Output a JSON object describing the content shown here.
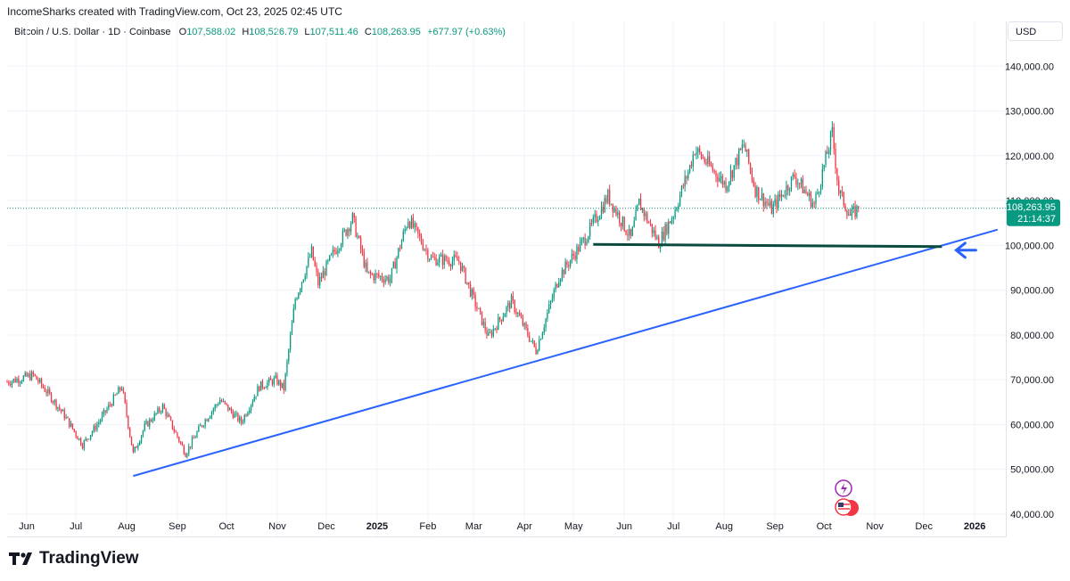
{
  "header": {
    "caption": "IncomeSharks created with TradingView.com, Oct 23, 2025 02:45 UTC",
    "symbol": "Bitcoin / U.S. Dollar · 1D · Coinbase",
    "ohlc": {
      "o_label": "O",
      "o": "107,588.02",
      "h_label": "H",
      "h": "108,526.79",
      "l_label": "L",
      "l": "107,511.46",
      "c_label": "C",
      "c": "108,263.95",
      "change": "+677.97 (+0.63%)"
    },
    "currency": "USD"
  },
  "brand": {
    "name": "TradingView"
  },
  "price_tag": {
    "price": "108,263.95",
    "countdown": "21:14:37"
  },
  "colors": {
    "up": "#089981",
    "down": "#f23645",
    "trendline": "#2962ff",
    "support": "#0b4a3f",
    "arrow": "#2962ff",
    "price_tag": "#089981"
  },
  "icons": [
    "flash-event-icon",
    "us-flag-icon"
  ],
  "chart_data": {
    "type": "candlestick",
    "y_axis": {
      "min": 35000,
      "max": 150000,
      "ticks": [
        40000,
        50000,
        60000,
        70000,
        80000,
        90000,
        100000,
        110000,
        120000,
        130000,
        140000
      ],
      "tick_labels": [
        "40,000.00",
        "50,000.00",
        "60,000.00",
        "70,000.00",
        "80,000.00",
        "90,000.00",
        "100,000.00",
        "110,000.00",
        "120,000.00",
        "130,000.00",
        "140,000.00"
      ]
    },
    "x_axis": {
      "start": "2024-05-20",
      "end": "2026-01-20",
      "ticks": [
        {
          "date": "2024-06-01",
          "label": "Jun"
        },
        {
          "date": "2024-07-01",
          "label": "Jul"
        },
        {
          "date": "2024-08-01",
          "label": "Aug"
        },
        {
          "date": "2024-09-01",
          "label": "Sep"
        },
        {
          "date": "2024-10-01",
          "label": "Oct"
        },
        {
          "date": "2024-11-01",
          "label": "Nov"
        },
        {
          "date": "2024-12-01",
          "label": "Dec"
        },
        {
          "date": "2025-01-01",
          "label": "2025",
          "bold": true
        },
        {
          "date": "2025-02-01",
          "label": "Feb"
        },
        {
          "date": "2025-03-01",
          "label": "Mar"
        },
        {
          "date": "2025-04-01",
          "label": "Apr"
        },
        {
          "date": "2025-05-01",
          "label": "May"
        },
        {
          "date": "2025-06-01",
          "label": "Jun"
        },
        {
          "date": "2025-07-01",
          "label": "Jul"
        },
        {
          "date": "2025-08-01",
          "label": "Aug"
        },
        {
          "date": "2025-09-01",
          "label": "Sep"
        },
        {
          "date": "2025-10-01",
          "label": "Oct"
        },
        {
          "date": "2025-11-01",
          "label": "Nov"
        },
        {
          "date": "2025-12-01",
          "label": "Dec"
        },
        {
          "date": "2026-01-01",
          "label": "2026",
          "bold": true
        }
      ]
    },
    "close_path": [
      [
        "2024-05-20",
        69500
      ],
      [
        "2024-06-05",
        71000
      ],
      [
        "2024-06-15",
        66500
      ],
      [
        "2024-06-24",
        62000
      ],
      [
        "2024-07-05",
        55500
      ],
      [
        "2024-07-14",
        60000
      ],
      [
        "2024-07-29",
        68500
      ],
      [
        "2024-08-05",
        53500
      ],
      [
        "2024-08-12",
        59500
      ],
      [
        "2024-08-23",
        64000
      ],
      [
        "2024-09-06",
        53500
      ],
      [
        "2024-09-15",
        59500
      ],
      [
        "2024-09-27",
        65500
      ],
      [
        "2024-10-10",
        60500
      ],
      [
        "2024-10-21",
        68500
      ],
      [
        "2024-10-31",
        70000
      ],
      [
        "2024-11-05",
        68000
      ],
      [
        "2024-11-12",
        88000
      ],
      [
        "2024-11-22",
        98500
      ],
      [
        "2024-11-26",
        91500
      ],
      [
        "2024-12-05",
        98000
      ],
      [
        "2024-12-17",
        106000
      ],
      [
        "2024-12-26",
        93500
      ],
      [
        "2025-01-09",
        92500
      ],
      [
        "2025-01-20",
        106000
      ],
      [
        "2025-02-03",
        97000
      ],
      [
        "2025-02-20",
        96500
      ],
      [
        "2025-03-03",
        86000
      ],
      [
        "2025-03-10",
        79500
      ],
      [
        "2025-03-24",
        87500
      ],
      [
        "2025-04-08",
        76500
      ],
      [
        "2025-04-22",
        93000
      ],
      [
        "2025-05-08",
        101500
      ],
      [
        "2025-05-22",
        111000
      ],
      [
        "2025-06-05",
        101500
      ],
      [
        "2025-06-10",
        109500
      ],
      [
        "2025-06-22",
        100500
      ],
      [
        "2025-07-01",
        107000
      ],
      [
        "2025-07-11",
        117500
      ],
      [
        "2025-07-14",
        121500
      ],
      [
        "2025-08-02",
        113500
      ],
      [
        "2025-08-13",
        122500
      ],
      [
        "2025-08-20",
        112500
      ],
      [
        "2025-08-30",
        108000
      ],
      [
        "2025-09-13",
        115500
      ],
      [
        "2025-09-25",
        109000
      ],
      [
        "2025-10-06",
        125000
      ],
      [
        "2025-10-10",
        112000
      ],
      [
        "2025-10-17",
        106500
      ],
      [
        "2025-10-22",
        108264
      ]
    ],
    "drawings": {
      "trendline": {
        "from": [
          "2024-08-05",
          48500
        ],
        "to": [
          "2026-01-15",
          103500
        ]
      },
      "support_line": {
        "from": [
          "2025-05-13",
          100200
        ],
        "to": [
          "2025-12-12",
          99700
        ]
      },
      "arrow_point": [
        "2025-12-12",
        99700
      ],
      "last_price_line": 108264
    }
  }
}
